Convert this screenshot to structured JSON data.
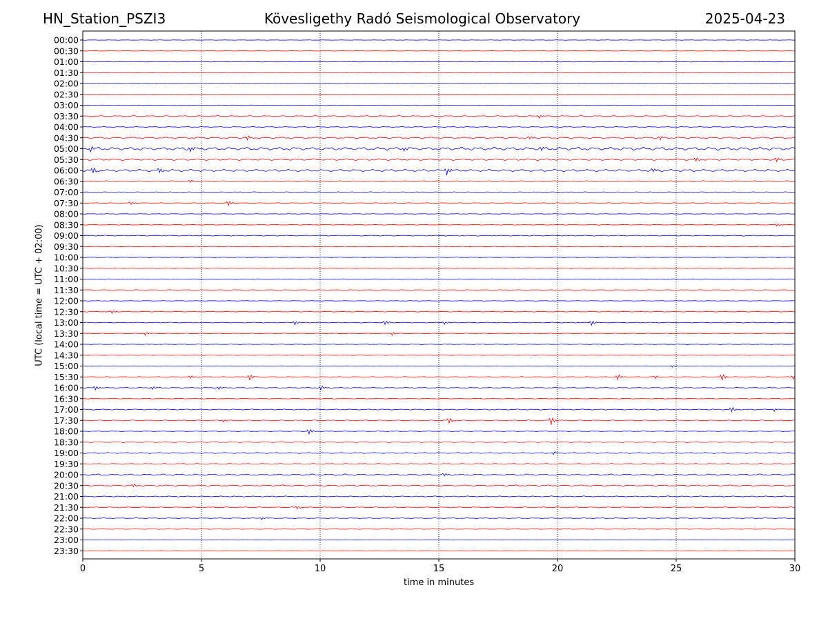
{
  "header": {
    "station": "HN_Station_PSZI3",
    "observatory": "Kövesligethy Radó Seismological Observatory",
    "date": "2025-04-23"
  },
  "chart_data": {
    "type": "line",
    "xlabel": "time in minutes",
    "ylabel": "UTC (local time = UTC + 02:00)",
    "xlim": [
      0,
      30
    ],
    "xticks": [
      0,
      5,
      10,
      15,
      20,
      25,
      30
    ],
    "vertical_gridlines": [
      5,
      10,
      15,
      20,
      25
    ],
    "colors": {
      "even_rows": "#0000ff",
      "odd_rows": "#ff0000",
      "grid": "#000000"
    },
    "rows": [
      "00:00",
      "00:30",
      "01:00",
      "01:30",
      "02:00",
      "02:30",
      "03:00",
      "03:30",
      "04:00",
      "04:30",
      "05:00",
      "05:30",
      "06:00",
      "06:30",
      "07:00",
      "07:30",
      "08:00",
      "08:30",
      "09:00",
      "09:30",
      "10:00",
      "10:30",
      "11:00",
      "11:30",
      "12:00",
      "12:30",
      "13:00",
      "13:30",
      "14:00",
      "14:30",
      "15:00",
      "15:30",
      "16:00",
      "16:30",
      "17:00",
      "17:30",
      "18:00",
      "18:30",
      "19:00",
      "19:30",
      "20:00",
      "20:30",
      "21:00",
      "21:30",
      "22:00",
      "22:30",
      "23:00",
      "23:30"
    ],
    "noise_level": [
      0.3,
      0.3,
      0.4,
      0.3,
      0.3,
      0.3,
      0.3,
      0.8,
      0.7,
      1.2,
      2.5,
      1.5,
      2.0,
      1.0,
      0.6,
      0.5,
      0.4,
      0.5,
      0.7,
      0.4,
      0.5,
      0.5,
      0.4,
      0.4,
      0.4,
      0.4,
      0.6,
      0.5,
      0.4,
      0.4,
      0.4,
      0.5,
      0.6,
      0.6,
      0.8,
      0.7,
      0.5,
      0.7,
      0.9,
      0.7,
      1.2,
      1.0,
      0.8,
      0.8,
      0.6,
      0.4,
      0.3,
      0.3
    ],
    "events": [
      {
        "row": "03:30",
        "minute": 19.2,
        "amp": 3
      },
      {
        "row": "04:30",
        "minute": 6.9,
        "amp": 4
      },
      {
        "row": "04:30",
        "minute": 18.8,
        "amp": 3
      },
      {
        "row": "04:30",
        "minute": 24.3,
        "amp": 4
      },
      {
        "row": "05:00",
        "minute": 0.3,
        "amp": 5
      },
      {
        "row": "05:00",
        "minute": 4.5,
        "amp": 5
      },
      {
        "row": "05:00",
        "minute": 13.5,
        "amp": 4
      },
      {
        "row": "05:00",
        "minute": 19.3,
        "amp": 4
      },
      {
        "row": "05:30",
        "minute": 25.8,
        "amp": 4
      },
      {
        "row": "05:30",
        "minute": 29.2,
        "amp": 4
      },
      {
        "row": "06:00",
        "minute": 0.4,
        "amp": 6
      },
      {
        "row": "06:00",
        "minute": 3.2,
        "amp": 5
      },
      {
        "row": "06:00",
        "minute": 15.3,
        "amp": 7
      },
      {
        "row": "06:00",
        "minute": 24.0,
        "amp": 4
      },
      {
        "row": "06:30",
        "minute": 4.5,
        "amp": 3
      },
      {
        "row": "07:30",
        "minute": 2.0,
        "amp": 3
      },
      {
        "row": "07:30",
        "minute": 6.1,
        "amp": 5
      },
      {
        "row": "08:30",
        "minute": 29.2,
        "amp": 3
      },
      {
        "row": "12:30",
        "minute": 1.2,
        "amp": 3
      },
      {
        "row": "13:00",
        "minute": 8.9,
        "amp": 4
      },
      {
        "row": "13:00",
        "minute": 12.7,
        "amp": 4
      },
      {
        "row": "13:00",
        "minute": 15.2,
        "amp": 3
      },
      {
        "row": "13:00",
        "minute": 21.4,
        "amp": 5
      },
      {
        "row": "13:30",
        "minute": 2.6,
        "amp": 3
      },
      {
        "row": "13:30",
        "minute": 13.0,
        "amp": 3
      },
      {
        "row": "15:00",
        "minute": 24.8,
        "amp": 2
      },
      {
        "row": "15:30",
        "minute": 4.5,
        "amp": 3
      },
      {
        "row": "15:30",
        "minute": 7.0,
        "amp": 6
      },
      {
        "row": "15:30",
        "minute": 22.5,
        "amp": 5
      },
      {
        "row": "15:30",
        "minute": 24.1,
        "amp": 3
      },
      {
        "row": "15:30",
        "minute": 26.9,
        "amp": 7
      },
      {
        "row": "15:30",
        "minute": 29.9,
        "amp": 4
      },
      {
        "row": "16:00",
        "minute": 0.5,
        "amp": 4
      },
      {
        "row": "16:00",
        "minute": 2.9,
        "amp": 3
      },
      {
        "row": "16:00",
        "minute": 5.7,
        "amp": 3
      },
      {
        "row": "16:00",
        "minute": 10.0,
        "amp": 4
      },
      {
        "row": "17:00",
        "minute": 27.3,
        "amp": 5
      },
      {
        "row": "17:00",
        "minute": 29.1,
        "amp": 3
      },
      {
        "row": "17:30",
        "minute": 5.9,
        "amp": 3
      },
      {
        "row": "17:30",
        "minute": 15.4,
        "amp": 6
      },
      {
        "row": "17:30",
        "minute": 19.7,
        "amp": 8
      },
      {
        "row": "18:00",
        "minute": 9.5,
        "amp": 5
      },
      {
        "row": "19:00",
        "minute": 19.8,
        "amp": 3
      },
      {
        "row": "20:00",
        "minute": 15.2,
        "amp": 3
      },
      {
        "row": "20:30",
        "minute": 2.1,
        "amp": 3
      },
      {
        "row": "21:30",
        "minute": 9.0,
        "amp": 3
      },
      {
        "row": "22:00",
        "minute": 7.5,
        "amp": 2
      }
    ]
  }
}
